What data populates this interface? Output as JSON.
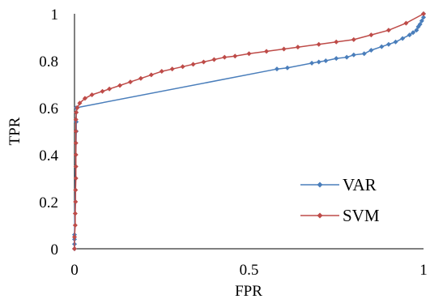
{
  "chart_data": {
    "type": "line",
    "xlabel": "FPR",
    "ylabel": "TPR",
    "xlim": [
      0,
      1
    ],
    "ylim": [
      0,
      1
    ],
    "x_ticks": [
      "0",
      "0.5",
      "1"
    ],
    "y_ticks": [
      "0",
      "0.2",
      "0.4",
      "0.6",
      "0.8",
      "1"
    ],
    "grid": false,
    "legend_position": "right",
    "series": [
      {
        "name": "VAR",
        "color": "#4a7ebb",
        "marker": "diamond",
        "points": [
          [
            0,
            0
          ],
          [
            0,
            0.02
          ],
          [
            0,
            0.04
          ],
          [
            0,
            0.06
          ],
          [
            0.005,
            0.5
          ],
          [
            0.005,
            0.54
          ],
          [
            0.005,
            0.58
          ],
          [
            0.005,
            0.6
          ],
          [
            0.58,
            0.765
          ],
          [
            0.61,
            0.77
          ],
          [
            0.68,
            0.79
          ],
          [
            0.7,
            0.795
          ],
          [
            0.72,
            0.8
          ],
          [
            0.75,
            0.81
          ],
          [
            0.78,
            0.815
          ],
          [
            0.8,
            0.825
          ],
          [
            0.83,
            0.83
          ],
          [
            0.85,
            0.845
          ],
          [
            0.88,
            0.86
          ],
          [
            0.9,
            0.87
          ],
          [
            0.92,
            0.88
          ],
          [
            0.94,
            0.895
          ],
          [
            0.96,
            0.91
          ],
          [
            0.97,
            0.92
          ],
          [
            0.98,
            0.93
          ],
          [
            0.985,
            0.945
          ],
          [
            0.99,
            0.955
          ],
          [
            0.995,
            0.97
          ],
          [
            1,
            0.985
          ],
          [
            1,
            1
          ]
        ]
      },
      {
        "name": "SVM",
        "color": "#be4b48",
        "marker": "diamond",
        "points": [
          [
            0,
            0
          ],
          [
            0,
            0.05
          ],
          [
            0.002,
            0.1
          ],
          [
            0.002,
            0.15
          ],
          [
            0.003,
            0.2
          ],
          [
            0.003,
            0.25
          ],
          [
            0.004,
            0.3
          ],
          [
            0.004,
            0.35
          ],
          [
            0.004,
            0.4
          ],
          [
            0.004,
            0.45
          ],
          [
            0.004,
            0.5
          ],
          [
            0.004,
            0.55
          ],
          [
            0.005,
            0.58
          ],
          [
            0.008,
            0.6
          ],
          [
            0.015,
            0.62
          ],
          [
            0.03,
            0.64
          ],
          [
            0.05,
            0.655
          ],
          [
            0.08,
            0.67
          ],
          [
            0.1,
            0.68
          ],
          [
            0.13,
            0.695
          ],
          [
            0.16,
            0.71
          ],
          [
            0.19,
            0.725
          ],
          [
            0.22,
            0.74
          ],
          [
            0.25,
            0.755
          ],
          [
            0.28,
            0.765
          ],
          [
            0.31,
            0.775
          ],
          [
            0.34,
            0.785
          ],
          [
            0.37,
            0.795
          ],
          [
            0.4,
            0.805
          ],
          [
            0.43,
            0.815
          ],
          [
            0.46,
            0.82
          ],
          [
            0.5,
            0.83
          ],
          [
            0.55,
            0.84
          ],
          [
            0.6,
            0.85
          ],
          [
            0.64,
            0.858
          ],
          [
            0.7,
            0.87
          ],
          [
            0.75,
            0.88
          ],
          [
            0.8,
            0.89
          ],
          [
            0.85,
            0.91
          ],
          [
            0.9,
            0.93
          ],
          [
            0.95,
            0.96
          ],
          [
            1,
            1
          ]
        ]
      }
    ]
  }
}
